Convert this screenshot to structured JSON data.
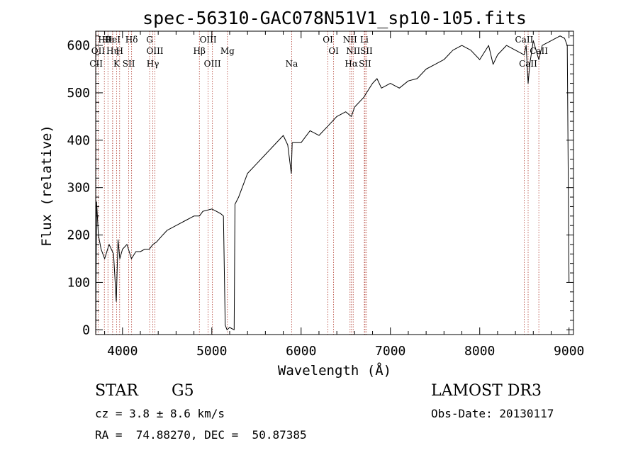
{
  "chart_data": {
    "type": "line",
    "title": "spec-56310-GAC078N51V1_sp10-105.fits",
    "xlabel": "Wavelength (Å)",
    "ylabel": "Flux (relative)",
    "xlim": [
      3700,
      9050
    ],
    "ylim": [
      -10,
      630
    ],
    "xticks": [
      4000,
      5000,
      6000,
      7000,
      8000,
      9000
    ],
    "xtick_labels": [
      "4000",
      "5000",
      "6000",
      "7000",
      "8000",
      "9000"
    ],
    "yticks": [
      0,
      100,
      200,
      300,
      400,
      500,
      600
    ],
    "ytick_labels": [
      "0",
      "100",
      "200",
      "300",
      "400",
      "500",
      "600"
    ],
    "series": [
      {
        "name": "flux",
        "x": [
          3700,
          3710,
          3730,
          3760,
          3800,
          3850,
          3900,
          3930,
          3950,
          3970,
          4000,
          4050,
          4100,
          4150,
          4200,
          4250,
          4300,
          4340,
          4380,
          4450,
          4500,
          4600,
          4700,
          4800,
          4861,
          4900,
          5000,
          5050,
          5100,
          5130,
          5150,
          5170,
          5200,
          5250,
          5260,
          5300,
          5400,
          5500,
          5600,
          5700,
          5800,
          5850,
          5890,
          5900,
          5950,
          6000,
          6100,
          6200,
          6300,
          6400,
          6500,
          6562,
          6600,
          6700,
          6800,
          6850,
          6900,
          7000,
          7100,
          7200,
          7300,
          7400,
          7500,
          7600,
          7700,
          7800,
          7900,
          8000,
          8100,
          8150,
          8200,
          8300,
          8400,
          8498,
          8520,
          8542,
          8560,
          8600,
          8662,
          8700,
          8800,
          8900,
          8950,
          8980,
          9000
        ],
        "y": [
          0,
          270,
          200,
          170,
          150,
          180,
          160,
          60,
          190,
          150,
          170,
          180,
          150,
          165,
          165,
          170,
          170,
          180,
          185,
          200,
          210,
          220,
          230,
          240,
          240,
          250,
          255,
          250,
          245,
          240,
          10,
          0,
          5,
          0,
          265,
          280,
          330,
          350,
          370,
          390,
          410,
          390,
          330,
          395,
          395,
          395,
          420,
          410,
          430,
          450,
          460,
          450,
          470,
          490,
          520,
          530,
          510,
          520,
          510,
          525,
          530,
          550,
          560,
          570,
          590,
          600,
          590,
          570,
          600,
          560,
          580,
          600,
          590,
          580,
          600,
          520,
          560,
          610,
          570,
          600,
          610,
          620,
          615,
          600,
          100
        ]
      }
    ],
    "lines": [
      {
        "name": "Hθ",
        "wavelength": 3797
      },
      {
        "name": "OII",
        "wavelength": 3727
      },
      {
        "name": "CII",
        "wavelength": 3705
      },
      {
        "name": "Hε",
        "wavelength": 3837
      },
      {
        "name": "Hη",
        "wavelength": 3889
      },
      {
        "name": "K",
        "wavelength": 3934
      },
      {
        "name": "HeI",
        "wavelength": 3889
      },
      {
        "name": "H",
        "wavelength": 3968
      },
      {
        "name": "SII",
        "wavelength": 4070
      },
      {
        "name": "Hδ",
        "wavelength": 4102
      },
      {
        "name": "OIII",
        "wavelength": 4363
      },
      {
        "name": "Hγ",
        "wavelength": 4340
      },
      {
        "name": "G",
        "wavelength": 4304
      },
      {
        "name": "Hβ",
        "wavelength": 4861
      },
      {
        "name": "OIII",
        "wavelength": 5007
      },
      {
        "name": "OIII",
        "wavelength": 4959
      },
      {
        "name": "Mg",
        "wavelength": 5175
      },
      {
        "name": "Na",
        "wavelength": 5894
      },
      {
        "name": "OI",
        "wavelength": 6300
      },
      {
        "name": "OI",
        "wavelength": 6364
      },
      {
        "name": "Hα",
        "wavelength": 6563
      },
      {
        "name": "NII",
        "wavelength": 6548
      },
      {
        "name": "NII",
        "wavelength": 6583
      },
      {
        "name": "SII",
        "wavelength": 6716
      },
      {
        "name": "Li",
        "wavelength": 6708
      },
      {
        "name": "SII",
        "wavelength": 6731
      },
      {
        "name": "CaII",
        "wavelength": 8542
      },
      {
        "name": "CaII",
        "wavelength": 8498
      },
      {
        "name": "CaII",
        "wavelength": 8662
      }
    ]
  },
  "info": {
    "object_type": "STAR",
    "subclass": "G5",
    "survey": "LAMOST DR3",
    "redshift": "cz = 3.8 ± 8.6 km/s",
    "obs_date": "Obs-Date: 20130117",
    "coords": "RA =  74.88270, DEC =  50.87385"
  }
}
